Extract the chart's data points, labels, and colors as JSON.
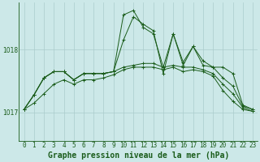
{
  "title": "Graphe pression niveau de la mer (hPa)",
  "yticks": [
    1017,
    1018
  ],
  "ylim": [
    1016.55,
    1018.75
  ],
  "xlim": [
    -0.5,
    23.5
  ],
  "bg_color": "#cce8e8",
  "grid_color": "#aacccc",
  "line_color": "#1a5c1a",
  "label_color": "#1a5c1a",
  "lines": [
    [
      1017.05,
      1017.28,
      1017.55,
      1017.65,
      1017.65,
      1017.52,
      1017.62,
      1017.62,
      1017.62,
      1017.65,
      1018.55,
      1018.62,
      1018.35,
      1018.25,
      1017.72,
      1018.25,
      1017.75,
      1018.05,
      1017.75,
      1017.72,
      1017.72,
      1017.62,
      1017.12,
      1017.05
    ],
    [
      1017.05,
      1017.28,
      1017.55,
      1017.65,
      1017.65,
      1017.52,
      1017.62,
      1017.62,
      1017.62,
      1017.65,
      1018.15,
      1018.52,
      1018.4,
      1018.3,
      1017.62,
      1018.25,
      1017.8,
      1018.05,
      1017.82,
      1017.72,
      1017.55,
      1017.42,
      1017.1,
      1017.05
    ],
    [
      1017.05,
      1017.28,
      1017.55,
      1017.65,
      1017.65,
      1017.52,
      1017.62,
      1017.62,
      1017.62,
      1017.65,
      1017.72,
      1017.75,
      1017.78,
      1017.78,
      1017.72,
      1017.75,
      1017.72,
      1017.72,
      1017.68,
      1017.62,
      1017.45,
      1017.3,
      1017.08,
      1017.02
    ],
    [
      1017.05,
      1017.15,
      1017.3,
      1017.45,
      1017.52,
      1017.45,
      1017.52,
      1017.52,
      1017.55,
      1017.6,
      1017.68,
      1017.72,
      1017.72,
      1017.72,
      1017.68,
      1017.72,
      1017.65,
      1017.68,
      1017.65,
      1017.58,
      1017.35,
      1017.18,
      1017.05,
      1017.02
    ]
  ],
  "title_fontsize": 7,
  "tick_fontsize": 5.5,
  "ylabel_fontsize": 5.5
}
